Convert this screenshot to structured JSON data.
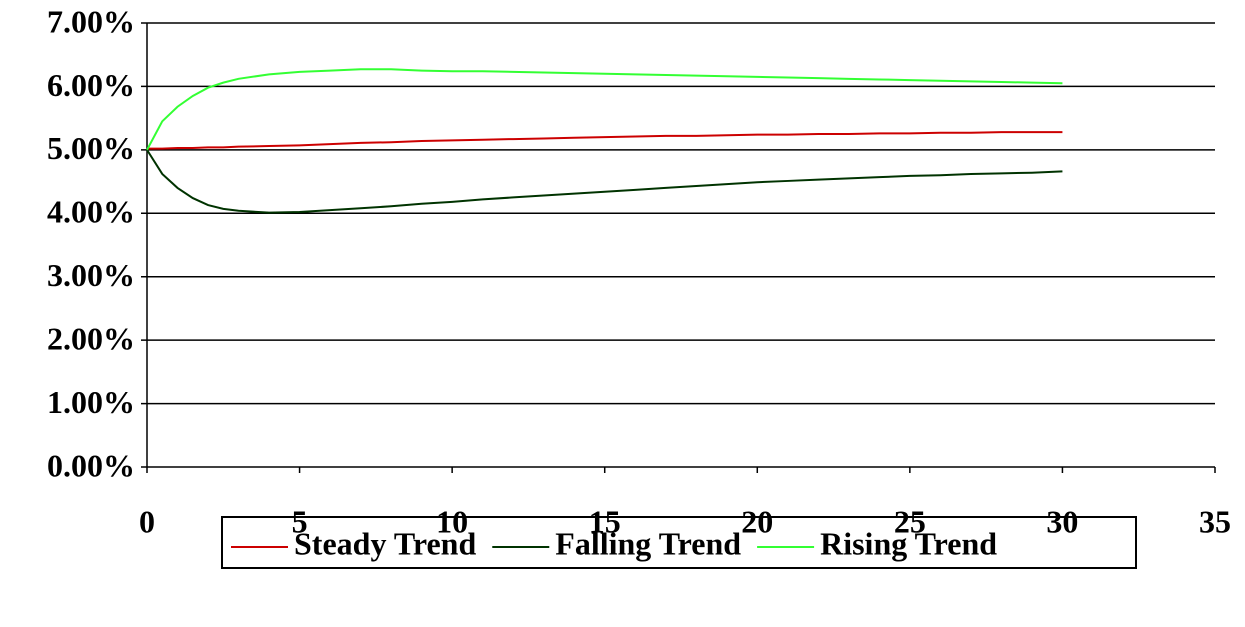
{
  "chart_data": {
    "type": "line",
    "x": [
      0,
      0.5,
      1,
      1.5,
      2,
      2.5,
      3,
      4,
      5,
      6,
      7,
      8,
      9,
      10,
      11,
      12,
      13,
      14,
      15,
      16,
      17,
      18,
      19,
      20,
      21,
      22,
      23,
      24,
      25,
      26,
      27,
      28,
      29,
      30
    ],
    "series": [
      {
        "name": "Steady Trend",
        "color": "#cc0000",
        "values": [
          5.02,
          5.02,
          5.03,
          5.03,
          5.04,
          5.04,
          5.05,
          5.06,
          5.07,
          5.09,
          5.11,
          5.12,
          5.14,
          5.15,
          5.16,
          5.17,
          5.18,
          5.19,
          5.2,
          5.21,
          5.22,
          5.22,
          5.23,
          5.24,
          5.24,
          5.25,
          5.25,
          5.26,
          5.26,
          5.27,
          5.27,
          5.28,
          5.28,
          5.28
        ]
      },
      {
        "name": "Falling Trend",
        "color": "#003300",
        "values": [
          5.0,
          4.62,
          4.4,
          4.24,
          4.13,
          4.07,
          4.04,
          4.01,
          4.02,
          4.05,
          4.08,
          4.11,
          4.15,
          4.18,
          4.22,
          4.25,
          4.28,
          4.31,
          4.34,
          4.37,
          4.4,
          4.43,
          4.46,
          4.49,
          4.51,
          4.53,
          4.55,
          4.57,
          4.59,
          4.6,
          4.62,
          4.63,
          4.64,
          4.66
        ]
      },
      {
        "name": "Rising Trend",
        "color": "#33ff33",
        "values": [
          5.0,
          5.45,
          5.68,
          5.85,
          5.98,
          6.06,
          6.12,
          6.19,
          6.23,
          6.25,
          6.27,
          6.27,
          6.25,
          6.24,
          6.24,
          6.23,
          6.22,
          6.21,
          6.2,
          6.19,
          6.18,
          6.17,
          6.16,
          6.15,
          6.14,
          6.13,
          6.12,
          6.11,
          6.1,
          6.09,
          6.08,
          6.07,
          6.06,
          6.05
        ]
      }
    ],
    "xlim": [
      0,
      35
    ],
    "xticks": [
      0,
      5,
      10,
      15,
      20,
      25,
      30,
      35
    ],
    "ylim": [
      0,
      7
    ],
    "yticks": [
      {
        "value": 0,
        "label": "0.00%"
      },
      {
        "value": 1,
        "label": "1.00%"
      },
      {
        "value": 2,
        "label": "2.00%"
      },
      {
        "value": 3,
        "label": "3.00%"
      },
      {
        "value": 4,
        "label": "4.00%"
      },
      {
        "value": 5,
        "label": "5.00%"
      },
      {
        "value": 6,
        "label": "6.00%"
      },
      {
        "value": 7,
        "label": "7.00%"
      }
    ],
    "grid": true,
    "legend": "bottom"
  }
}
